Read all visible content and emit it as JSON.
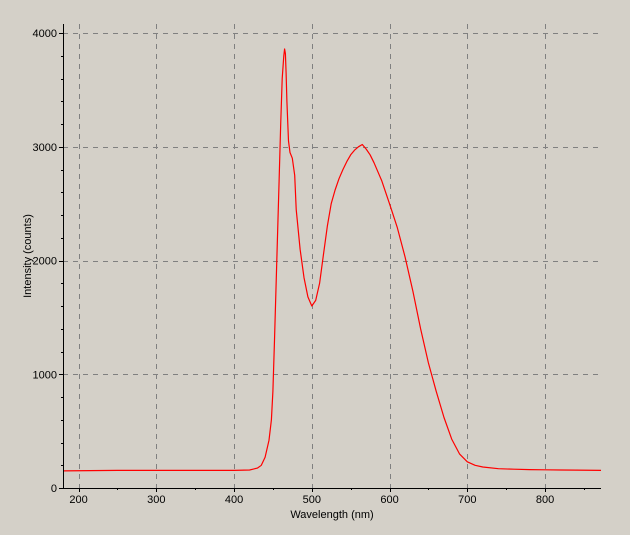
{
  "chart_data": {
    "type": "line",
    "title": "",
    "xlabel": "Wavelength (nm)",
    "ylabel": "Intensity (counts)",
    "xlim": [
      180,
      872
    ],
    "ylim": [
      0,
      4080
    ],
    "x_ticks": [
      200,
      300,
      400,
      500,
      600,
      700,
      800
    ],
    "x_tick_labels": [
      "200",
      "300",
      "400",
      "500",
      "600",
      "700",
      "800"
    ],
    "y_ticks": [
      0,
      1000,
      2000,
      3000,
      4000
    ],
    "y_tick_labels": [
      "0",
      "1000",
      "2000",
      "3000",
      "4000"
    ],
    "grid": true,
    "legend": "none",
    "series": [
      {
        "color": "#ff0000",
        "x": [
          180,
          250,
          300,
          350,
          400,
          420,
          430,
          435,
          440,
          445,
          448,
          450,
          452,
          455,
          458,
          460,
          462,
          464,
          465,
          466,
          467,
          468,
          470,
          472,
          475,
          478,
          480,
          485,
          490,
          495,
          500,
          505,
          510,
          515,
          520,
          525,
          530,
          535,
          540,
          545,
          550,
          555,
          560,
          565,
          570,
          575,
          580,
          590,
          600,
          610,
          620,
          630,
          640,
          650,
          660,
          670,
          680,
          690,
          700,
          710,
          720,
          740,
          760,
          780,
          800,
          820,
          840,
          872
        ],
        "y": [
          150,
          155,
          155,
          155,
          155,
          158,
          175,
          200,
          270,
          420,
          600,
          850,
          1300,
          2000,
          2700,
          3200,
          3600,
          3800,
          3860,
          3820,
          3650,
          3400,
          3050,
          2950,
          2900,
          2750,
          2450,
          2100,
          1850,
          1680,
          1600,
          1650,
          1800,
          2050,
          2300,
          2500,
          2620,
          2720,
          2800,
          2870,
          2930,
          2970,
          3000,
          3020,
          2980,
          2930,
          2860,
          2700,
          2500,
          2290,
          2030,
          1730,
          1400,
          1100,
          850,
          620,
          430,
          300,
          230,
          200,
          185,
          170,
          165,
          162,
          160,
          158,
          157,
          155
        ]
      }
    ]
  }
}
